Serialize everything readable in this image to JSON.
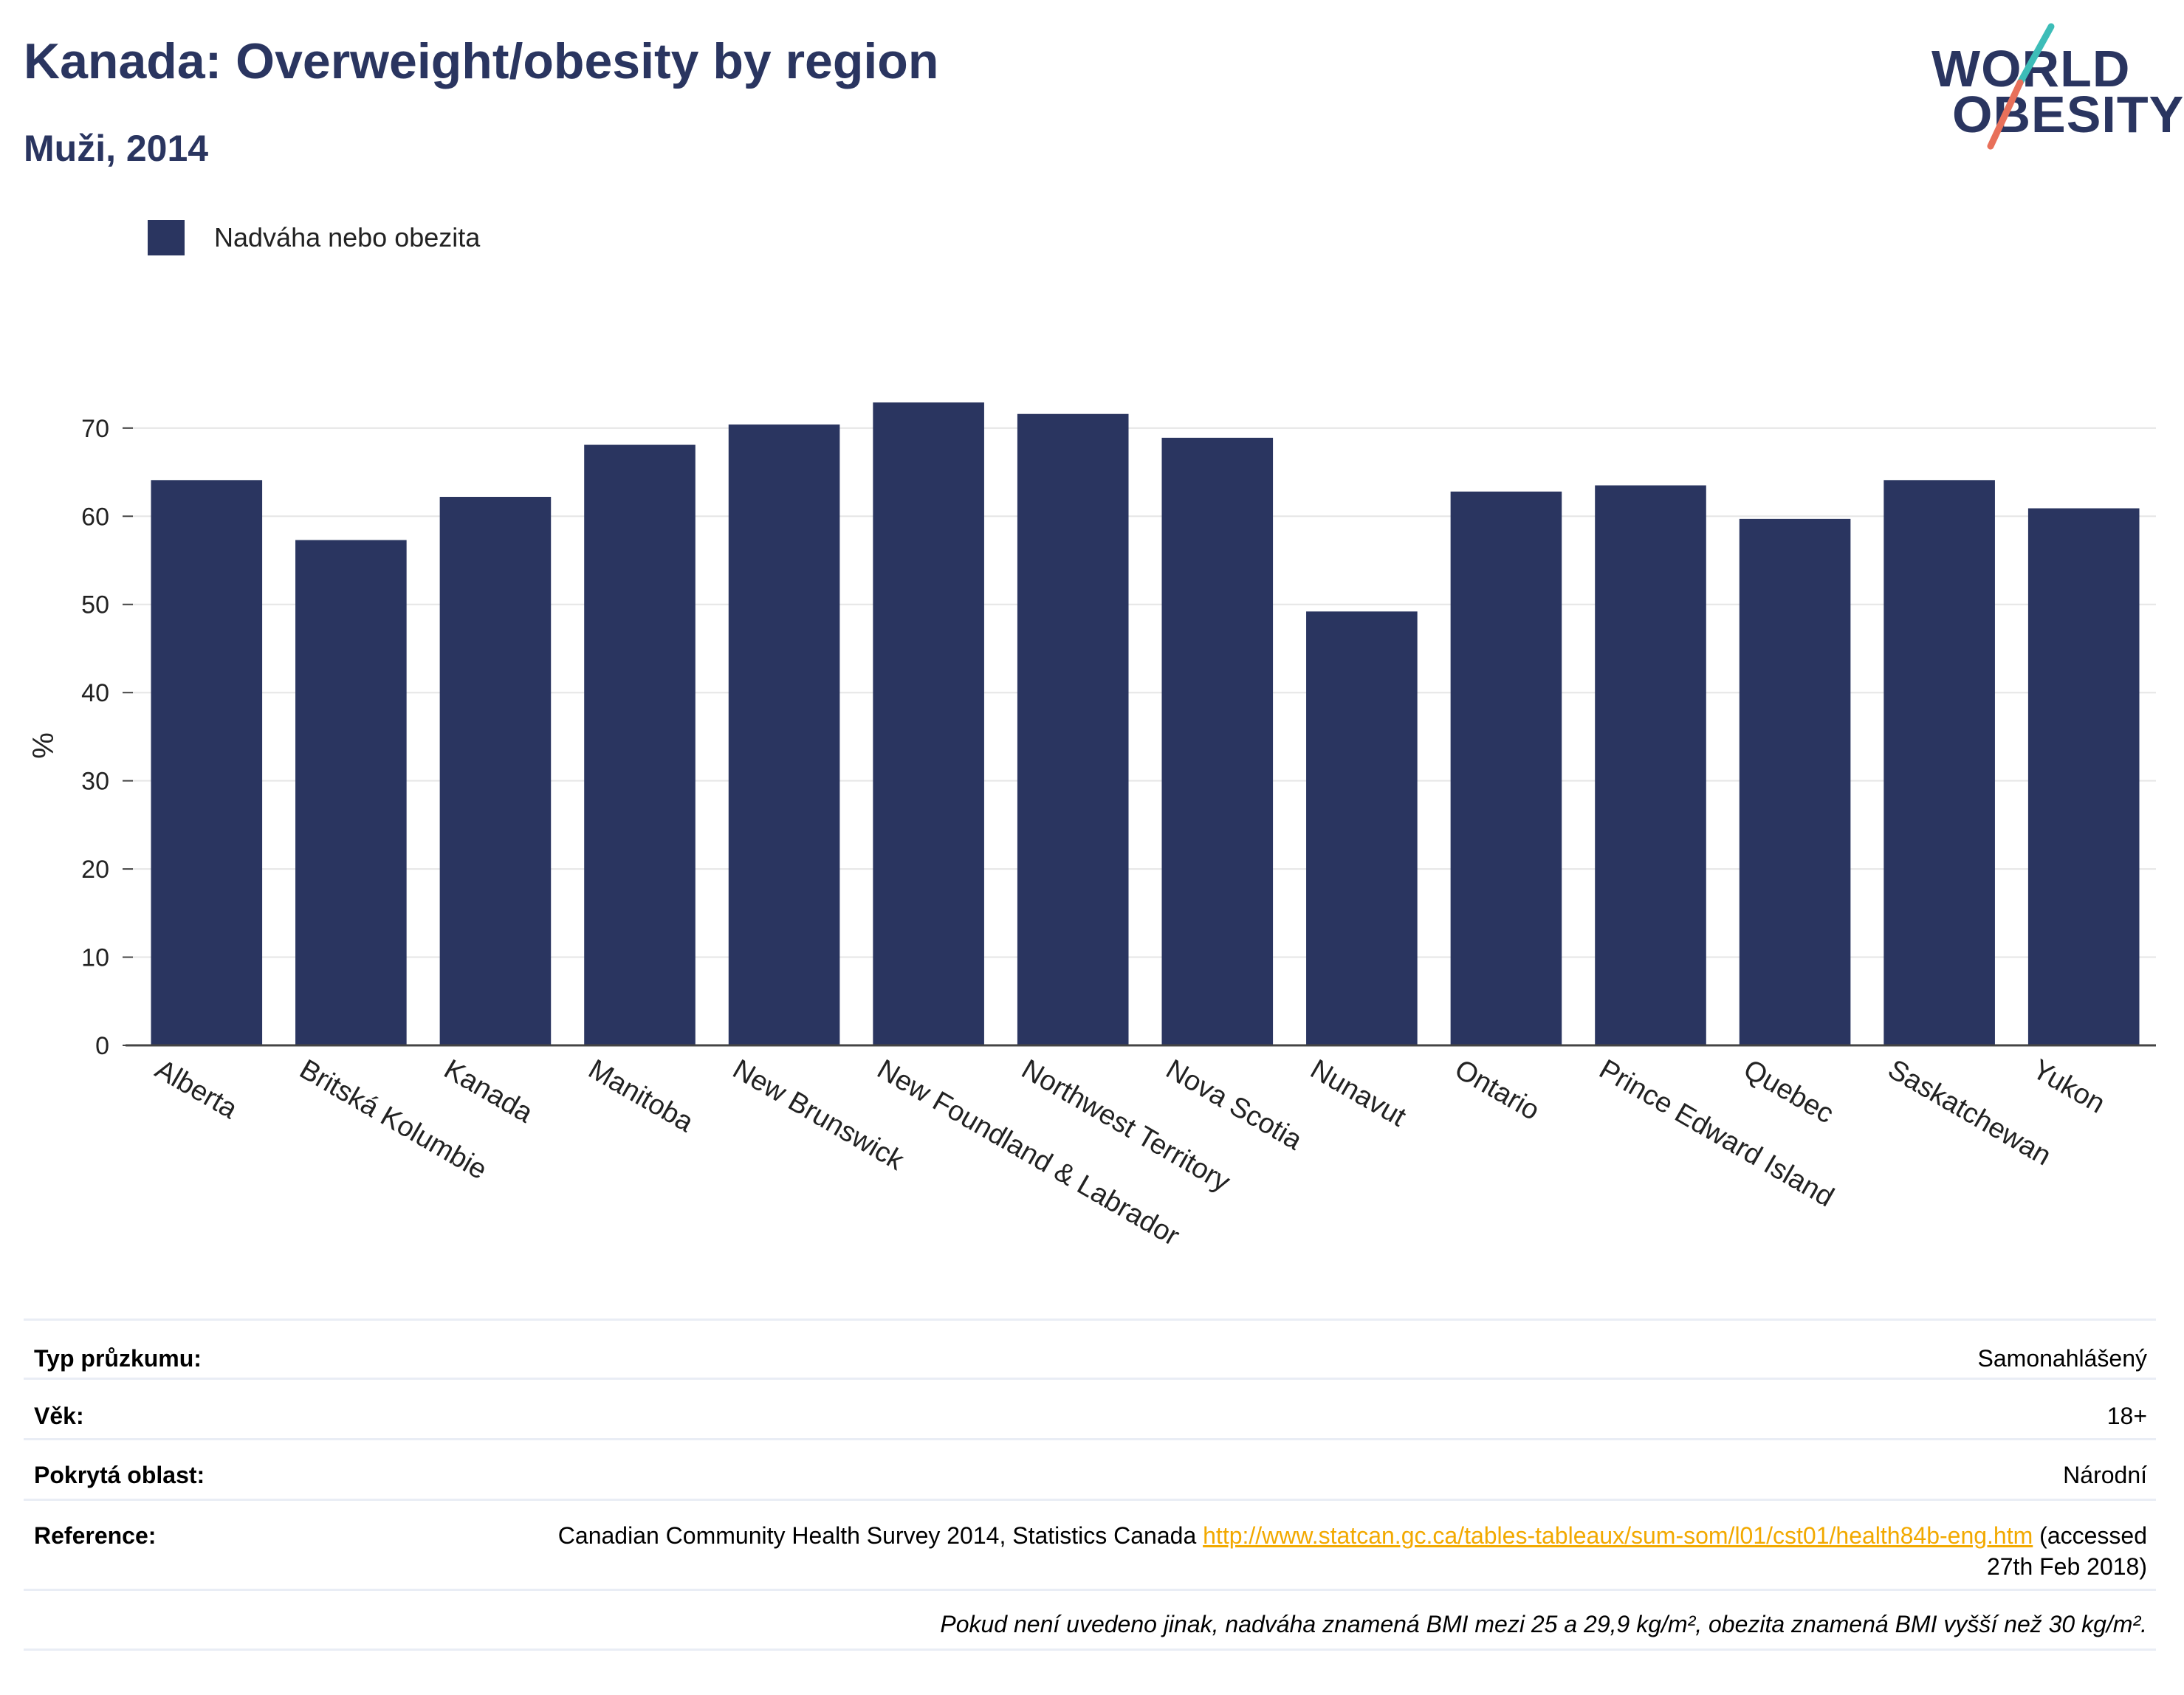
{
  "title": "Kanada: Overweight/obesity by region",
  "subtitle": "Muži, 2014",
  "logo": {
    "line1": "WORLD",
    "line2": "OBESITY"
  },
  "colors": {
    "bar": "#2a3560",
    "title": "#2a3560",
    "link": "#f2a900",
    "logo_teal": "#3dbdb8",
    "logo_coral": "#e8705a"
  },
  "chart_data": {
    "type": "bar",
    "title": "Kanada: Overweight/obesity by region",
    "subtitle": "Muži, 2014",
    "ylabel": "%",
    "xlabel": "",
    "ylim": [
      0,
      73
    ],
    "yticks": [
      0,
      10,
      20,
      30,
      40,
      50,
      60,
      70
    ],
    "grid": true,
    "legend_position": "top-left",
    "categories": [
      "Alberta",
      "Britská Kolumbie",
      "Kanada",
      "Manitoba",
      "New Brunswick",
      "New Foundland & Labrador",
      "Northwest Territory",
      "Nova Scotia",
      "Nunavut",
      "Ontario",
      "Prince Edward Island",
      "Quebec",
      "Saskatchewan",
      "Yukon"
    ],
    "series": [
      {
        "name": "Nadváha nebo obezita",
        "values": [
          64.1,
          57.3,
          62.2,
          68.1,
          70.4,
          72.9,
          71.6,
          68.9,
          49.2,
          62.8,
          63.5,
          59.7,
          64.1,
          60.9
        ]
      }
    ]
  },
  "meta": {
    "survey_type_label": "Typ průzkumu:",
    "survey_type_value": "Samonahlášený",
    "age_label": "Věk:",
    "age_value": "18+",
    "coverage_label": "Pokrytá oblast:",
    "coverage_value": "Národní",
    "reference_label": "Reference:",
    "reference_text": "Canadian Community Health Survey 2014, Statistics Canada ",
    "reference_link": "http://www.statcan.gc.ca/tables-tableaux/sum-som/l01/cst01/health84b-eng.htm",
    "reference_suffix": " (accessed 27th Feb 2018)",
    "footnote": "Pokud není uvedeno jinak, nadváha znamená BMI mezi 25 a 29,9 kg/m², obezita znamená BMI vyšší než 30 kg/m²."
  }
}
